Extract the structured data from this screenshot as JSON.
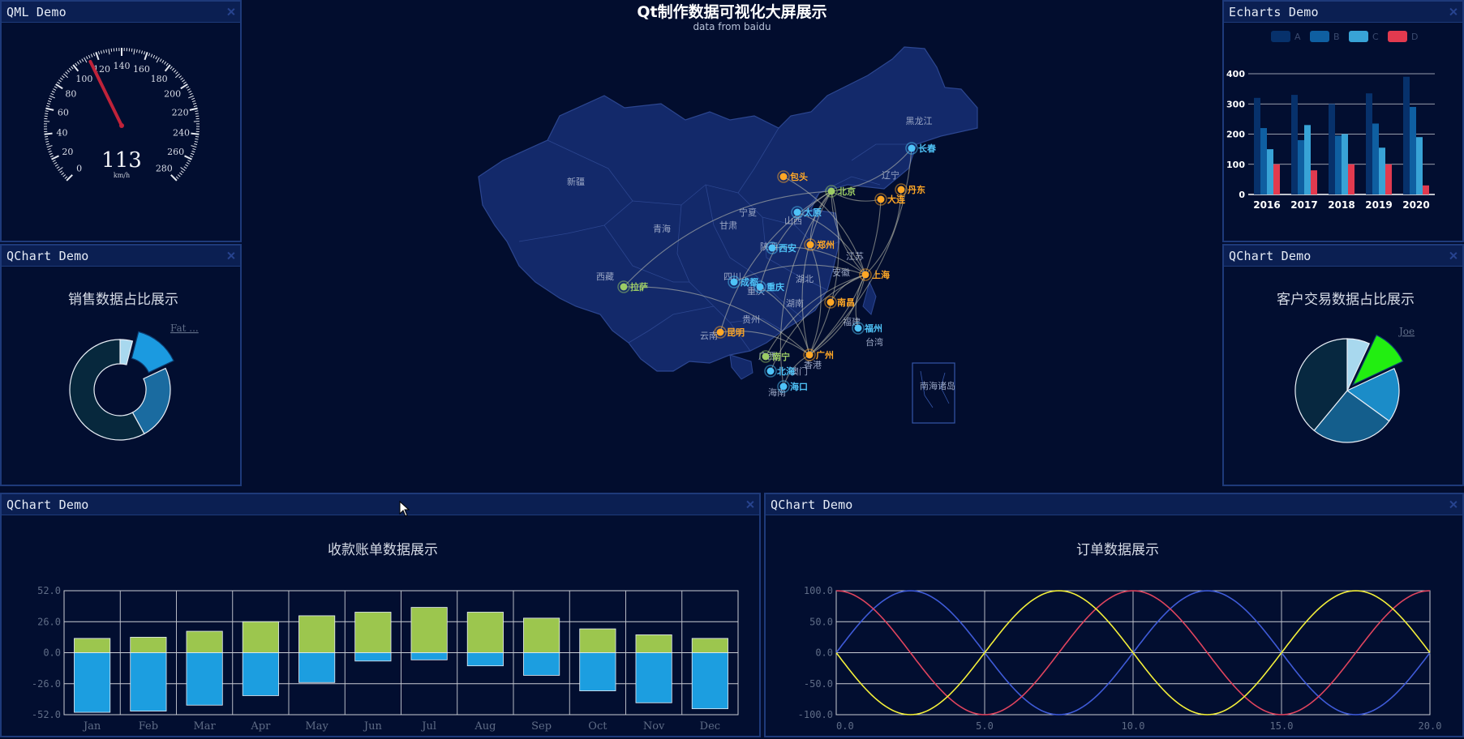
{
  "window": {
    "title": "Qt制作数据可视化大屏展示",
    "subtitle": "data from baidu"
  },
  "panels": {
    "gauge": {
      "title": "QML Demo"
    },
    "echarts": {
      "title": "Echarts Demo"
    },
    "donut": {
      "title": "QChart Demo"
    },
    "pie": {
      "title": "QChart Demo"
    },
    "bar": {
      "title": "QChart Demo"
    },
    "line": {
      "title": "QChart Demo"
    }
  },
  "gauge": {
    "value": 113,
    "value_text": "113",
    "unit": "km/h",
    "min": 0,
    "max": 280,
    "ticks": [
      "0",
      "20",
      "40",
      "60",
      "80",
      "100",
      "120",
      "140",
      "160",
      "180",
      "200",
      "220",
      "240",
      "260",
      "280"
    ],
    "needle_color": "#c0233a"
  },
  "map": {
    "provinces": [
      "黑龙江",
      "辽宁",
      "新疆",
      "宁夏",
      "青海",
      "甘肃",
      "山西",
      "西藏",
      "陕西",
      "湖北",
      "安徽",
      "江苏",
      "四川",
      "重庆",
      "湖南",
      "贵州",
      "福建",
      "云南",
      "广西",
      "台湾",
      "海南",
      "香港",
      "澳门",
      "南海诸岛"
    ],
    "cities": [
      {
        "name": "长春",
        "color": "#4fc3f7"
      },
      {
        "name": "丹东",
        "color": "#ffa726"
      },
      {
        "name": "大连",
        "color": "#ffa726"
      },
      {
        "name": "包头",
        "color": "#ffa726"
      },
      {
        "name": "北京",
        "color": "#9ccc65"
      },
      {
        "name": "太原",
        "color": "#4fc3f7"
      },
      {
        "name": "郑州",
        "color": "#ffa726"
      },
      {
        "name": "西安",
        "color": "#4fc3f7"
      },
      {
        "name": "上海",
        "color": "#ffa726"
      },
      {
        "name": "成都",
        "color": "#4fc3f7"
      },
      {
        "name": "重庆",
        "color": "#4fc3f7"
      },
      {
        "name": "南昌",
        "color": "#ffa726"
      },
      {
        "name": "拉萨",
        "color": "#9ccc65"
      },
      {
        "name": "福州",
        "color": "#4fc3f7"
      },
      {
        "name": "昆明",
        "color": "#ffa726"
      },
      {
        "name": "南宁",
        "color": "#9ccc65"
      },
      {
        "name": "广州",
        "color": "#ffa726"
      },
      {
        "name": "北海",
        "color": "#4fc3f7"
      },
      {
        "name": "海口",
        "color": "#4fc3f7"
      }
    ],
    "colors": {
      "land": "#13296a",
      "border": "#2c4690",
      "route": "#c8c8b4"
    }
  },
  "echart": {
    "legend": [
      "A",
      "B",
      "C",
      "D"
    ],
    "colors": [
      "#07316b",
      "#0f5fa1",
      "#38a3d6",
      "#e23a4f"
    ],
    "categories": [
      "2016",
      "2017",
      "2018",
      "2019",
      "2020"
    ],
    "yticks": [
      "0",
      "100",
      "200",
      "300",
      "400"
    ]
  },
  "donut": {
    "title": "销售数据占比展示",
    "legend": "Fat ..."
  },
  "pie": {
    "title": "客户交易数据占比展示",
    "legend": "Joe"
  },
  "bar_chart": {
    "title": "收款账单数据展示",
    "yticks": [
      "52.0",
      "26.0",
      "0.0",
      "-26.0",
      "-52.0"
    ]
  },
  "line_chart": {
    "title": "订单数据展示",
    "yticks": [
      "100.0",
      "50.0",
      "0.0",
      "-50.0",
      "-100.0"
    ],
    "xticks": [
      "0.0",
      "5.0",
      "10.0",
      "15.0",
      "20.0"
    ]
  },
  "chart_data": [
    {
      "type": "bar",
      "title": "",
      "categories": [
        "2016",
        "2017",
        "2018",
        "2019",
        "2020"
      ],
      "series": [
        {
          "name": "A",
          "values": [
            320,
            330,
            300,
            335,
            390
          ]
        },
        {
          "name": "B",
          "values": [
            220,
            180,
            195,
            235,
            290
          ]
        },
        {
          "name": "C",
          "values": [
            150,
            230,
            200,
            155,
            190
          ]
        },
        {
          "name": "D",
          "values": [
            100,
            80,
            100,
            100,
            30
          ]
        }
      ],
      "ylim": [
        0,
        400
      ],
      "grid": true,
      "legend_position": "top"
    },
    {
      "type": "pie",
      "title": "销售数据占比展示",
      "donut": true,
      "values": [
        4,
        14,
        24,
        58
      ],
      "colors": [
        "#a8d8ee",
        "#1b9ae0",
        "#1a6ba0",
        "#07283d"
      ],
      "exploded_index": 1
    },
    {
      "type": "pie",
      "title": "客户交易数据占比展示",
      "values": [
        7,
        11,
        17,
        26,
        39
      ],
      "colors": [
        "#a8d8ee",
        "#22ee11",
        "#1b8cc8",
        "#145e8c",
        "#072840"
      ],
      "exploded_index": 1
    },
    {
      "type": "bar",
      "title": "收款账单数据展示",
      "stacked": true,
      "categories": [
        "Jan",
        "Feb",
        "Mar",
        "Apr",
        "May",
        "Jun",
        "Jul",
        "Aug",
        "Sep",
        "Oct",
        "Nov",
        "Dec"
      ],
      "series": [
        {
          "name": "",
          "values": [
            12,
            13,
            18,
            26,
            31,
            34,
            38,
            34,
            29,
            20,
            15,
            12
          ],
          "color": "#9cc64e"
        },
        {
          "name": "",
          "values": [
            -50,
            -49,
            -44,
            -36,
            -25,
            -7,
            -6,
            -11,
            -19,
            -32,
            -42,
            -47
          ],
          "color": "#1c9ee0"
        }
      ],
      "ylim": [
        -52,
        52
      ],
      "grid": true
    },
    {
      "type": "line",
      "title": "订单数据展示",
      "x": [
        0,
        20
      ],
      "series": [
        {
          "name": "",
          "function": "100*sin(2*pi*x/10)",
          "color": "#3f5bd8"
        },
        {
          "name": "",
          "function": "100*cos(2*pi*x/10)",
          "color": "#e0445e"
        },
        {
          "name": "",
          "function": "-100*sin(2*pi*x/10)",
          "color": "#f4f03a"
        }
      ],
      "xlim": [
        0,
        20
      ],
      "ylim": [
        -100,
        100
      ],
      "grid": true
    }
  ]
}
